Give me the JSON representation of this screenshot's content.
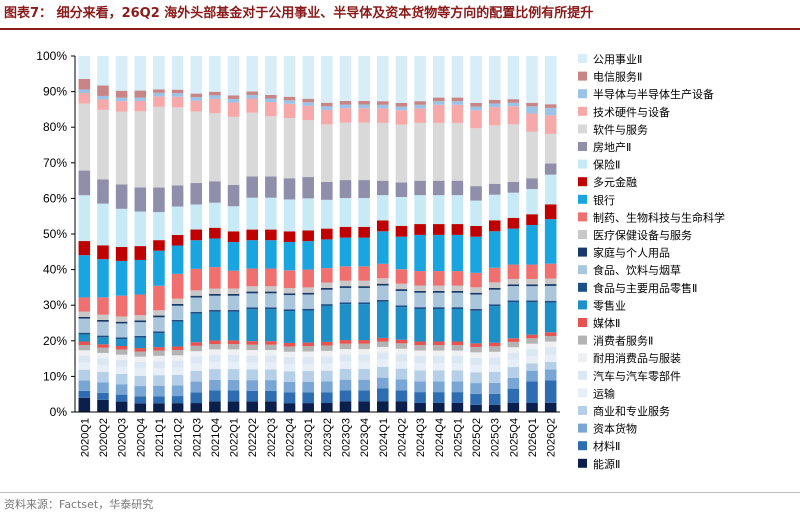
{
  "title": "图表7：  细分来看，26Q2 海外头部基金对于公用事业、半导体及资本货物等方向的配置比例有所提升",
  "source": "资料来源：Factset，华泰研究",
  "chart_data": {
    "type": "bar",
    "stacked": true,
    "percent_stacked": true,
    "ylim": [
      0,
      100
    ],
    "yticks": [
      "0%",
      "10%",
      "20%",
      "30%",
      "40%",
      "50%",
      "60%",
      "70%",
      "80%",
      "90%",
      "100%"
    ],
    "grid": false,
    "legend_position": "right",
    "categories": [
      "2020Q1",
      "2020Q2",
      "2020Q3",
      "2020Q4",
      "2021Q1",
      "2021Q2",
      "2021Q3",
      "2021Q4",
      "2022Q1",
      "2022Q2",
      "2022Q3",
      "2022Q4",
      "2023Q1",
      "2023Q2",
      "2023Q3",
      "2023Q4",
      "2024Q1",
      "2024Q2",
      "2024Q3",
      "2024Q4",
      "2025Q1",
      "2025Q2",
      "2025Q3",
      "2025Q4",
      "2026Q1",
      "2026Q2"
    ],
    "series": [
      {
        "name": "能源Ⅱ",
        "color": "#0b1f4d",
        "values": [
          4,
          3.5,
          3,
          2.5,
          2.5,
          2.5,
          2.5,
          3,
          3,
          3,
          3,
          2.5,
          2.5,
          2.5,
          3,
          3,
          3,
          3,
          2.5,
          2.5,
          2.5,
          2,
          2,
          2.5,
          2.5,
          2.5
        ]
      },
      {
        "name": "材料Ⅱ",
        "color": "#2f6db3",
        "values": [
          2,
          2,
          2,
          2,
          2,
          2,
          3,
          3,
          3,
          3,
          3,
          3,
          3,
          3,
          3,
          3,
          3.5,
          3,
          3,
          3,
          3,
          3,
          3,
          4,
          6,
          6
        ]
      },
      {
        "name": "资本货物",
        "color": "#79a6d4",
        "values": [
          3,
          3,
          3,
          3,
          3,
          3,
          3,
          3,
          3,
          3,
          3,
          3,
          3,
          3,
          3,
          3,
          3,
          3,
          3,
          3,
          3,
          3,
          3,
          3,
          3,
          3
        ]
      },
      {
        "name": "商业和专业服务",
        "color": "#b5cfe8",
        "values": [
          3,
          3,
          3,
          3,
          3,
          3,
          3,
          3,
          3,
          3,
          3,
          3,
          3,
          3,
          3,
          3,
          3,
          3,
          3,
          3,
          3,
          3,
          3,
          3,
          2,
          2
        ]
      },
      {
        "name": "运输",
        "color": "#e6eef7",
        "values": [
          2,
          2,
          2,
          2,
          2,
          2,
          2,
          2,
          2,
          2,
          2,
          2,
          2,
          2,
          2,
          2,
          2,
          2,
          2,
          2,
          2,
          2,
          2,
          2,
          2,
          2
        ]
      },
      {
        "name": "汽车与汽车零部件",
        "color": "#dbe8f4",
        "values": [
          2,
          2,
          2,
          2,
          2,
          2,
          2,
          2,
          2,
          2,
          2,
          2,
          2,
          2,
          2,
          2,
          2,
          2,
          2,
          2,
          2,
          2,
          2,
          2,
          2,
          2
        ]
      },
      {
        "name": "耐用消费品与服装",
        "color": "#eef0f3",
        "values": [
          1.5,
          1.5,
          1.5,
          1.5,
          1.5,
          1.5,
          1.5,
          1.5,
          1.5,
          1.5,
          1.5,
          1.5,
          1.5,
          1.5,
          1.5,
          1.5,
          1.5,
          1.5,
          1.5,
          1.5,
          1.5,
          1.5,
          1.5,
          1.5,
          1.5,
          1.5
        ]
      },
      {
        "name": "消费者服务Ⅱ",
        "color": "#b3b3b3",
        "values": [
          1.5,
          1.5,
          1.5,
          1.5,
          1.5,
          1.5,
          1.5,
          1.5,
          1.5,
          1.5,
          1.5,
          1.5,
          1.5,
          1.5,
          1.5,
          1.5,
          1.5,
          1.5,
          1.5,
          1.5,
          1.5,
          1.5,
          1.5,
          1.5,
          1.5,
          1.5
        ]
      },
      {
        "name": "媒体Ⅱ",
        "color": "#e8534f",
        "values": [
          1,
          1,
          1,
          1,
          1,
          1,
          1,
          1,
          1,
          1,
          1,
          1,
          1,
          1,
          1,
          1,
          1,
          1,
          1,
          1,
          1,
          1,
          1,
          1,
          1,
          1
        ]
      },
      {
        "name": "零售业",
        "color": "#1f8fc8",
        "values": [
          2,
          2,
          2,
          3,
          4,
          7,
          8,
          8,
          8,
          9,
          9,
          9,
          9,
          10,
          10,
          10,
          10,
          9,
          9,
          9,
          9,
          9,
          10,
          10,
          9,
          8
        ]
      },
      {
        "name": "食品与主要用品零售Ⅱ",
        "color": "#1b4f87",
        "values": [
          0.5,
          0.5,
          0.5,
          0.5,
          0.5,
          0.5,
          0.5,
          0.5,
          0.5,
          0.5,
          0.5,
          0.5,
          0.5,
          0.5,
          0.5,
          0.5,
          0.5,
          0.5,
          0.5,
          0.5,
          0.5,
          0.5,
          0.5,
          0.5,
          0.5,
          0.5
        ]
      },
      {
        "name": "食品、饮料与烟草",
        "color": "#aac6dc",
        "values": [
          4,
          4,
          4,
          4,
          4,
          4,
          4,
          4,
          4,
          4,
          4,
          4,
          4,
          4,
          4,
          4,
          4,
          4,
          4,
          4,
          4,
          4,
          4,
          4,
          4,
          4
        ]
      },
      {
        "name": "家庭与个人用品",
        "color": "#173a6b",
        "values": [
          0.5,
          0.5,
          0.5,
          0.5,
          0.5,
          0.5,
          0.5,
          0.5,
          0.5,
          0.5,
          0.5,
          0.5,
          0.5,
          0.5,
          0.5,
          0.5,
          0.5,
          0.5,
          0.5,
          0.5,
          0.5,
          0.5,
          0.5,
          0.5,
          0.5,
          0.5
        ]
      },
      {
        "name": "医疗保健设备与服务",
        "color": "#c8c8c8",
        "values": [
          1.5,
          1.5,
          1.5,
          1.5,
          1.5,
          1.5,
          1.5,
          1.5,
          1.5,
          1.5,
          1.5,
          1.5,
          1.5,
          1.5,
          1.5,
          1.5,
          1.5,
          1.5,
          1.5,
          1.5,
          1.5,
          1.5,
          1.5,
          1.5,
          1.5,
          1.5
        ]
      },
      {
        "name": "制药、生物科技与生命科学",
        "color": "#f07070",
        "values": [
          4,
          5,
          6,
          6,
          7,
          7,
          6,
          6,
          5,
          5,
          5,
          5,
          5,
          4,
          4,
          4,
          4,
          4,
          4,
          4,
          4,
          4,
          4,
          4,
          4,
          4
        ]
      },
      {
        "name": "银行",
        "color": "#19a6e0",
        "values": [
          12,
          11,
          10,
          10,
          10,
          8,
          8,
          8,
          8,
          8,
          8,
          8,
          8,
          8,
          8,
          8,
          9,
          9,
          10,
          10,
          10,
          10,
          10,
          10,
          11,
          12
        ]
      },
      {
        "name": "多元金融",
        "color": "#c00000",
        "values": [
          4,
          4,
          4,
          4,
          3,
          3,
          3,
          3,
          3,
          3,
          3,
          3,
          3,
          3,
          3,
          3,
          3,
          3,
          3,
          3,
          3,
          3,
          3,
          3,
          3,
          4
        ]
      },
      {
        "name": "保险Ⅱ",
        "color": "#c7eaf6",
        "values": [
          13,
          12,
          11,
          10,
          8,
          8,
          7,
          7,
          7,
          9,
          9,
          9,
          9,
          8,
          8,
          8,
          7,
          8,
          8,
          8,
          8,
          7,
          7,
          7,
          7,
          8
        ]
      },
      {
        "name": "房地产Ⅱ",
        "color": "#8f8fab",
        "values": [
          7,
          7,
          7,
          7,
          7,
          6,
          6,
          6,
          6,
          6,
          6,
          6,
          6,
          5,
          5,
          5,
          4,
          4,
          4,
          4,
          4,
          4,
          3,
          3,
          3,
          3
        ]
      },
      {
        "name": "软件与服务",
        "color": "#d9d9d9",
        "values": [
          19,
          20,
          21,
          22,
          23,
          22,
          20,
          19,
          19,
          18,
          17,
          17,
          16,
          16,
          16,
          16,
          16,
          16,
          16,
          16,
          16,
          16,
          16,
          16,
          13,
          8
        ]
      },
      {
        "name": "技术硬件与设备",
        "color": "#f7a8a8",
        "values": [
          3,
          3,
          3,
          3,
          3,
          3,
          3,
          4,
          4,
          4,
          4,
          4,
          4,
          4,
          4,
          4,
          4,
          4,
          4,
          5,
          5,
          5,
          5,
          5,
          5,
          5
        ]
      },
      {
        "name": "半导体与半导体生产设备",
        "color": "#9bc3e8",
        "values": [
          1,
          1,
          1,
          1,
          1,
          1,
          1,
          1,
          1,
          1,
          1,
          1,
          1,
          1,
          1,
          1,
          1,
          1,
          1,
          1,
          1,
          1,
          1,
          1,
          2,
          2
        ]
      },
      {
        "name": "电信服务Ⅱ",
        "color": "#c98585",
        "values": [
          3,
          3,
          2,
          2,
          1,
          1,
          1,
          1,
          1,
          1,
          1,
          1,
          1,
          1,
          1,
          1,
          1,
          1,
          1,
          1,
          1,
          1,
          1,
          1,
          1,
          1
        ]
      },
      {
        "name": "公用事业Ⅱ",
        "color": "#d7eef9",
        "values": [
          6.5,
          8.5,
          10,
          10,
          9.5,
          9.5,
          10.5,
          10,
          11,
          10,
          11,
          11.5,
          12,
          13,
          12.5,
          12.5,
          12.5,
          13,
          12.5,
          11.5,
          11.5,
          13,
          12,
          12,
          13,
          13
        ]
      }
    ]
  }
}
